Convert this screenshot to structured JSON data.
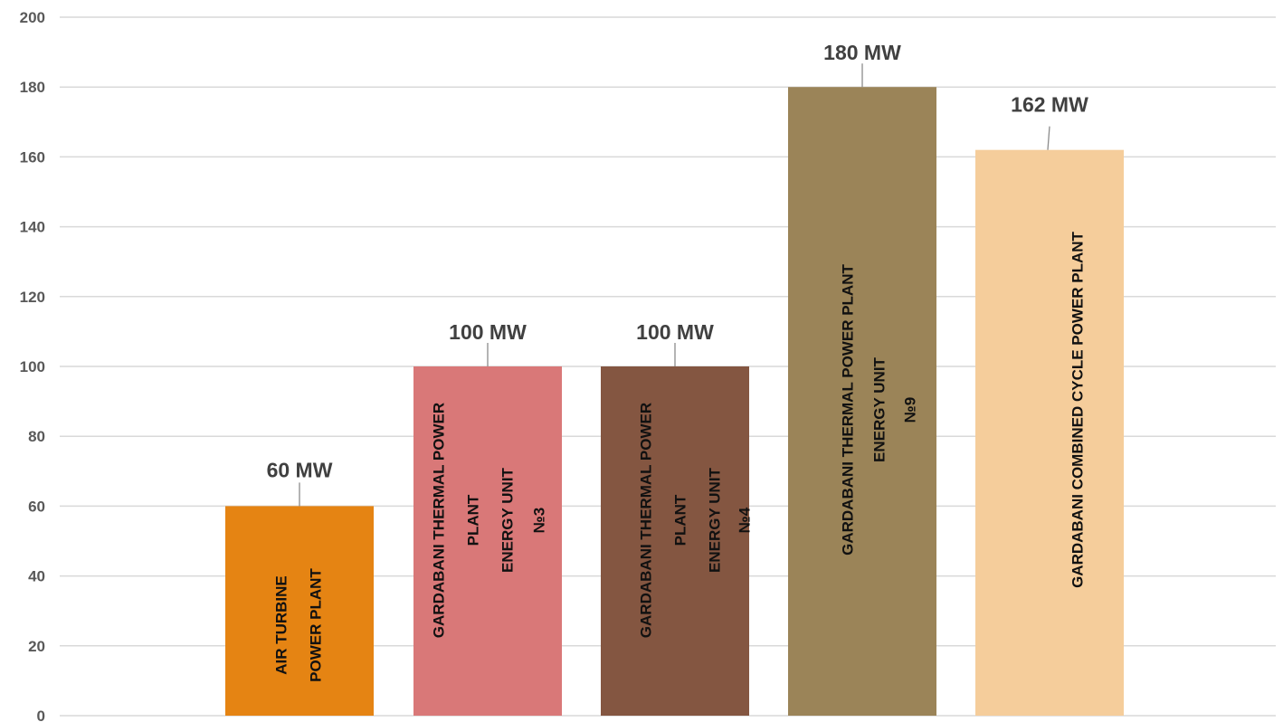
{
  "chart_data": {
    "type": "bar",
    "title": "",
    "xlabel": "",
    "ylabel": "",
    "ylim": [
      0,
      200
    ],
    "grid": true,
    "legend": "none",
    "yticks": [
      "0",
      "20",
      "40",
      "60",
      "80",
      "100",
      "120",
      "140",
      "160",
      "180",
      "200"
    ],
    "categories": [
      [
        "AIR TURBINE",
        "POWER PLANT"
      ],
      [
        "GARDABANI THERMAL POWER",
        "PLANT",
        "ENERGY UNIT",
        "№3"
      ],
      [
        "GARDABANI THERMAL POWER",
        "PLANT",
        "ENERGY UNIT",
        "№4"
      ],
      [
        "GARDABANI THERMAL POWER PLANT",
        "ENERGY UNIT",
        "№9"
      ],
      [
        "GARDABANI COMBINED CYCLE POWER PLANT"
      ]
    ],
    "values": [
      60,
      100,
      100,
      180,
      162
    ],
    "data_labels": [
      "60 MW",
      "100 MW",
      "100 MW",
      "180 MW",
      "162 MW"
    ],
    "colors": [
      "#e58413",
      "#d97878",
      "#845641",
      "#9b8458",
      "#f5cd9b"
    ],
    "text_colors": [
      "#111111",
      "#111111",
      "#111111",
      "#111111",
      "#111111"
    ]
  }
}
